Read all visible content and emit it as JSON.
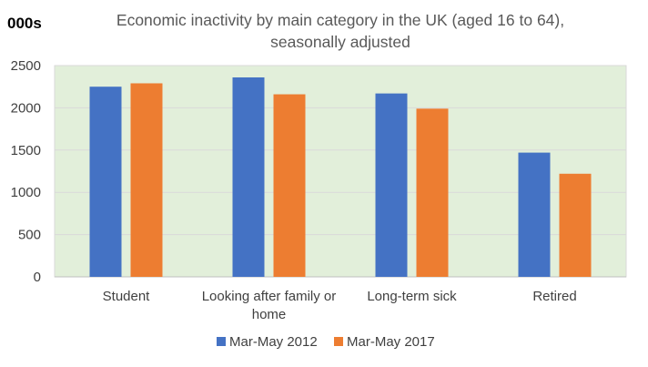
{
  "chart_data": {
    "type": "bar",
    "title_line1": "Economic inactivity by main category in the UK (aged 16 to 64),",
    "title_line2": "seasonally adjusted",
    "unit_label": "000s",
    "categories": [
      "Student",
      "Looking after family or home",
      "Long-term sick",
      "Retired"
    ],
    "category_label_lines": [
      [
        "Student"
      ],
      [
        "Looking after family or",
        "home"
      ],
      [
        "Long-term sick"
      ],
      [
        "Retired"
      ]
    ],
    "series": [
      {
        "name": "Mar-May 2012",
        "color": "#4472C4",
        "values": [
          2250,
          2360,
          2170,
          1470
        ]
      },
      {
        "name": "Mar-May 2017",
        "color": "#ED7D31",
        "values": [
          2290,
          2160,
          1990,
          1220
        ]
      }
    ],
    "ylim": [
      0,
      2500
    ],
    "yticks": [
      0,
      500,
      1000,
      1500,
      2000,
      2500
    ],
    "grid": true,
    "legend": "bottom",
    "plot_background": "#E2EFDA"
  }
}
